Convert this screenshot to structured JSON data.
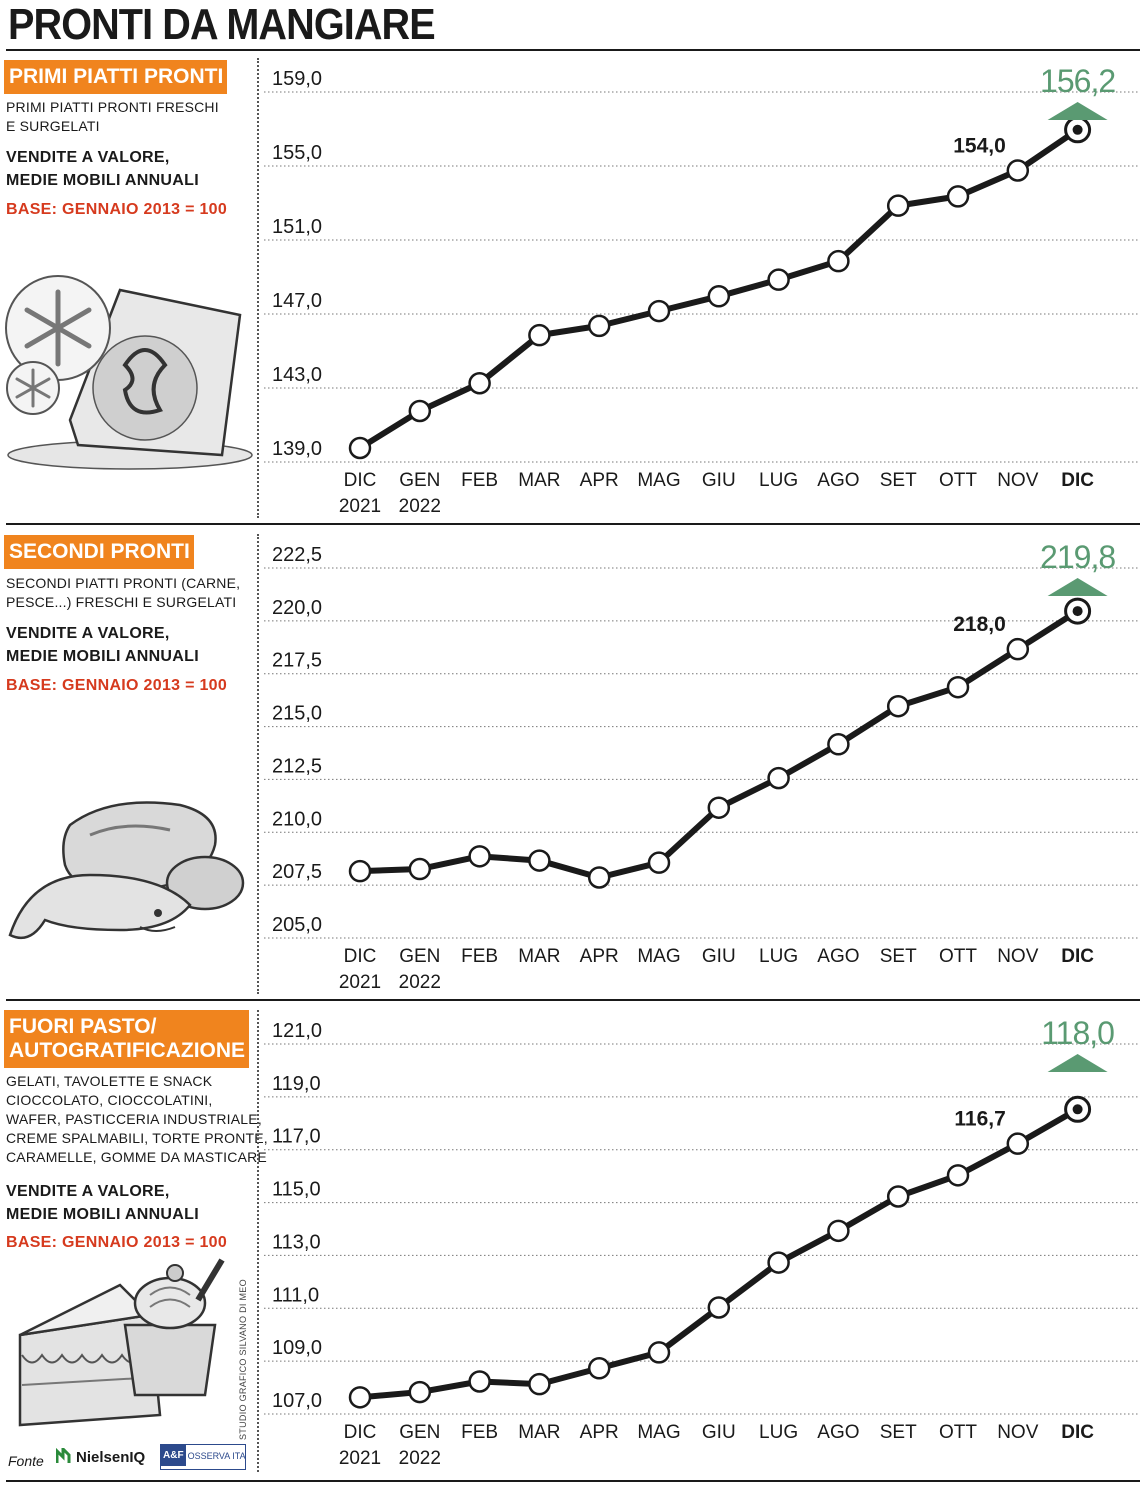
{
  "page": {
    "title": "PRONTI DA MANGIARE"
  },
  "colors": {
    "accent_orange": "#f0841e",
    "base_red": "#d63a1e",
    "final_green": "#5a9a72",
    "line": "#1a1a1a"
  },
  "footer": {
    "fonte_label": "Fonte",
    "source_1": "NielsenIQ",
    "source_2_logo": "A&F",
    "source_2": "OSSERVA ITALIA",
    "credit": "STUDIO GRAFICO SILVANO DI MEO"
  },
  "panels": [
    {
      "tag_lines": [
        "PRIMI PIATTI PRONTI"
      ],
      "desc_lines": [
        "PRIMI PIATTI PRONTI FRESCHI",
        "E SURGELATI"
      ],
      "metric_lines": [
        "VENDITE A VALORE,",
        "MEDIE MOBILI ANNUALI"
      ],
      "base": "BASE: GENNAIO 2013 = 100",
      "illustration": "frozen-pasta-bag-icon"
    },
    {
      "tag_lines": [
        "SECONDI PRONTI"
      ],
      "desc_lines": [
        "SECONDI PIATTI PRONTI (CARNE,",
        "PESCE...) FRESCHI  E SURGELATI"
      ],
      "metric_lines": [
        "VENDITE A VALORE,",
        "MEDIE MOBILI ANNUALI"
      ],
      "base": "BASE: GENNAIO 2013 = 100",
      "illustration": "meat-fish-icon"
    },
    {
      "tag_lines": [
        "FUORI PASTO/",
        "AUTOGRATIFICAZIONE"
      ],
      "desc_lines": [
        "GELATI, TAVOLETTE E SNACK",
        "CIOCCOLATO, CIOCCOLATINI,",
        "WAFER, PASTICCERIA INDUSTRIALE,",
        "CREME SPALMABILI, TORTE PRONTE,",
        "CARAMELLE, GOMME DA MASTICARE"
      ],
      "metric_lines": [
        "VENDITE A VALORE,",
        "MEDIE MOBILI ANNUALI"
      ],
      "base": "BASE: GENNAIO 2013 = 100",
      "illustration": "cake-icecream-icon"
    }
  ],
  "chart_data": [
    {
      "type": "line",
      "categories": [
        "DIC",
        "GEN",
        "FEB",
        "MAR",
        "APR",
        "MAG",
        "GIU",
        "LUG",
        "AGO",
        "SET",
        "OTT",
        "NOV",
        "DIC"
      ],
      "year_labels": [
        "2021",
        "2022"
      ],
      "values": [
        139.0,
        141.0,
        142.5,
        145.1,
        145.6,
        146.4,
        147.2,
        148.1,
        149.1,
        152.1,
        152.6,
        154.0,
        156.2
      ],
      "ylim": [
        139.0,
        159.0
      ],
      "yticks": [
        "139,0",
        "143,0",
        "147,0",
        "151,0",
        "155,0",
        "159,0"
      ],
      "label_prev": "154,0",
      "label_final": "156,2",
      "grid": true
    },
    {
      "type": "line",
      "categories": [
        "DIC",
        "GEN",
        "FEB",
        "MAR",
        "APR",
        "MAG",
        "GIU",
        "LUG",
        "AGO",
        "SET",
        "OTT",
        "NOV",
        "DIC"
      ],
      "year_labels": [
        "2021",
        "2022"
      ],
      "values": [
        207.5,
        207.6,
        208.2,
        208.0,
        207.2,
        207.9,
        210.5,
        211.9,
        213.5,
        215.3,
        216.2,
        218.0,
        219.8
      ],
      "ylim": [
        205.0,
        222.5
      ],
      "yticks": [
        "205,0",
        "207,5",
        "210,0",
        "212,5",
        "215,0",
        "217,5",
        "220,0",
        "222,5"
      ],
      "label_prev": "218,0",
      "label_final": "219,8",
      "grid": true
    },
    {
      "type": "line",
      "categories": [
        "DIC",
        "GEN",
        "FEB",
        "MAR",
        "APR",
        "MAG",
        "GIU",
        "LUG",
        "AGO",
        "SET",
        "OTT",
        "NOV",
        "DIC"
      ],
      "year_labels": [
        "2021",
        "2022"
      ],
      "values": [
        107.1,
        107.3,
        107.7,
        107.6,
        108.2,
        108.8,
        110.5,
        112.2,
        113.4,
        114.7,
        115.5,
        116.7,
        118.0
      ],
      "ylim": [
        107.0,
        121.0
      ],
      "yticks": [
        "107,0",
        "109,0",
        "111,0",
        "113,0",
        "115,0",
        "117,0",
        "119,0",
        "121,0"
      ],
      "label_prev": "116,7",
      "label_final": "118,0",
      "grid": true
    }
  ]
}
